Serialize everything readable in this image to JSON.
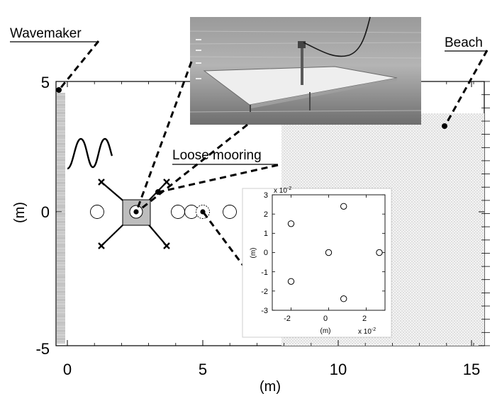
{
  "labels": {
    "wavemaker": "Wavemaker",
    "beach": "Beach",
    "loose_mooring": "Loose mooring"
  },
  "chart_data": [
    {
      "type": "diagram",
      "xlabel": "(m)",
      "ylabel": "(m)",
      "xlim": [
        -0.5,
        15.7
      ],
      "ylim": [
        -5,
        5
      ],
      "xticks": [
        "0",
        "5",
        "10",
        "15"
      ],
      "yticks": [
        "-5",
        "0",
        "5"
      ],
      "elements": {
        "circles_x": [
          1.1,
          4.1,
          4.6,
          5.0,
          6.0
        ],
        "moored_body": {
          "x": 2.5,
          "y": 0
        },
        "anchors": [
          {
            "x": 1.2,
            "y": 1.1
          },
          {
            "x": 3.6,
            "y": 1.1
          },
          {
            "x": 1.2,
            "y": -1.3
          },
          {
            "x": 3.6,
            "y": -1.3
          }
        ],
        "beach_from_x": 8.0,
        "marker_points": [
          {
            "x": -0.3,
            "y": 4.7
          },
          {
            "x": 14.1,
            "y": 3.3
          },
          {
            "x": 3.3,
            "y": 0.8
          },
          {
            "x": 5.0,
            "y": 0
          }
        ]
      }
    },
    {
      "type": "scatter",
      "xlabel": "(m)",
      "ylabel": "(m)",
      "x_exponent": "x 10",
      "y_exponent": "x 10",
      "exponent_power": "-2",
      "xlim": [
        -3,
        3
      ],
      "ylim": [
        -3,
        3
      ],
      "xticks": [
        "-2",
        "0",
        "2"
      ],
      "yticks": [
        "3",
        "2",
        "1",
        "0",
        "-1",
        "-2",
        "-3"
      ],
      "points": [
        {
          "x": -2.0,
          "y": 1.5
        },
        {
          "x": 0.8,
          "y": 2.4
        },
        {
          "x": 0.0,
          "y": 0.0
        },
        {
          "x": 2.7,
          "y": 0.0
        },
        {
          "x": -2.0,
          "y": -1.5
        },
        {
          "x": 0.8,
          "y": -2.4
        }
      ]
    }
  ]
}
